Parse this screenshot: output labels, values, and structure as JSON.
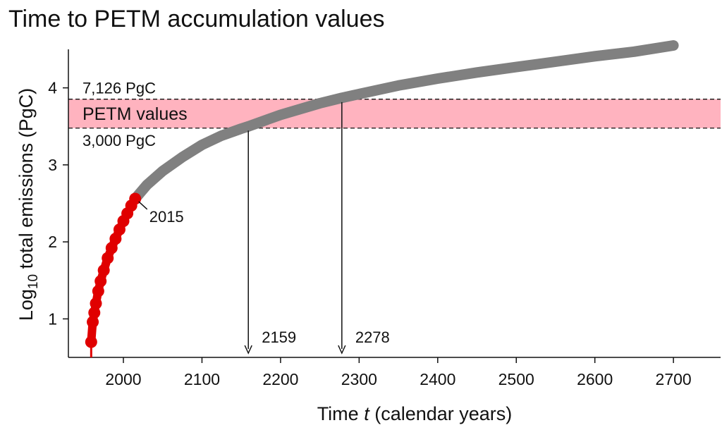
{
  "chart_data": {
    "type": "line",
    "title": "Time to PETM accumulation values",
    "xlabel": {
      "prefix": "Time  ",
      "variable": "t",
      "suffix": "  (calendar years)"
    },
    "ylabel": {
      "base": "Log",
      "subscript": "10",
      "rest": " total emissions (PgC)"
    },
    "xlim": [
      1930,
      2760
    ],
    "ylim": [
      0.5,
      4.5
    ],
    "x_ticks": [
      2000,
      2100,
      2200,
      2300,
      2400,
      2500,
      2600,
      2700
    ],
    "y_ticks": [
      1,
      2,
      3,
      4
    ],
    "grid": false,
    "band": {
      "label": "PETM values",
      "ymin": 3.477,
      "ymax": 3.853,
      "upper_label": "7,126 PgC",
      "lower_label": "3,000 PgC",
      "color": "#ffb3bf"
    },
    "series": [
      {
        "color": "#e00000",
        "points": [
          [
            1959,
            0.7
          ],
          [
            1961,
            0.96
          ],
          [
            1963,
            1.08
          ],
          [
            1965,
            1.2
          ],
          [
            1968,
            1.36
          ],
          [
            1971,
            1.49
          ],
          [
            1975,
            1.63
          ],
          [
            1980,
            1.79
          ],
          [
            1985,
            1.92
          ],
          [
            1990,
            2.04
          ],
          [
            1995,
            2.16
          ],
          [
            2000,
            2.27
          ],
          [
            2005,
            2.37
          ],
          [
            2010,
            2.47
          ],
          [
            2015,
            2.56
          ]
        ]
      },
      {
        "color": "#808080",
        "points": [
          [
            2015,
            2.56
          ],
          [
            2030,
            2.74
          ],
          [
            2050,
            2.92
          ],
          [
            2075,
            3.1
          ],
          [
            2100,
            3.26
          ],
          [
            2125,
            3.38
          ],
          [
            2150,
            3.47
          ],
          [
            2159,
            3.5
          ],
          [
            2200,
            3.65
          ],
          [
            2250,
            3.8
          ],
          [
            2278,
            3.87
          ],
          [
            2300,
            3.92
          ],
          [
            2350,
            4.03
          ],
          [
            2400,
            4.12
          ],
          [
            2450,
            4.2
          ],
          [
            2500,
            4.27
          ],
          [
            2550,
            4.34
          ],
          [
            2600,
            4.41
          ],
          [
            2650,
            4.47
          ],
          [
            2700,
            4.55
          ]
        ]
      }
    ],
    "annotations": [
      {
        "label": "2015",
        "x": 2015,
        "y": 2.56
      },
      {
        "label": "2159",
        "x": 2159,
        "y": 3.5
      },
      {
        "label": "2278",
        "x": 2278,
        "y": 3.87
      }
    ]
  }
}
